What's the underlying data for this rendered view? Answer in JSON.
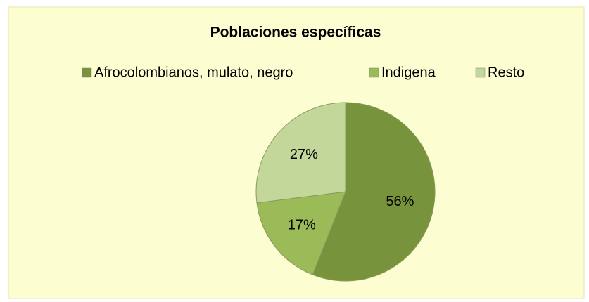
{
  "chart_data": {
    "type": "pie",
    "title": "Poblaciones específicas",
    "categories": [
      "Afrocolombianos, mulato, negro",
      "Indigena",
      "Resto"
    ],
    "values": [
      56,
      17,
      27
    ],
    "value_labels": [
      "56%",
      "17%",
      "27%"
    ],
    "colors": [
      "#77933c",
      "#9bbb59",
      "#c4d79b"
    ],
    "legend": "top"
  }
}
